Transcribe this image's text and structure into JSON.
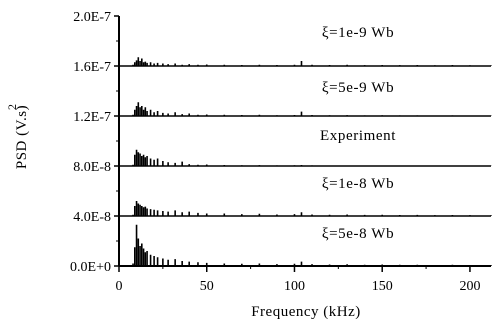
{
  "chart_data": {
    "type": "line",
    "title": "",
    "xlabel": "Frequency (kHz)",
    "ylabel": "PSD (V.s)",
    "ylabel_superscript": "2",
    "xlim": [
      0,
      212
    ],
    "ylim": [
      0,
      2e-07
    ],
    "xticks": [
      0,
      50,
      100,
      150,
      200
    ],
    "xtick_labels": [
      "0",
      "50",
      "100",
      "150",
      "200"
    ],
    "yticks": [
      0,
      4e-08,
      8e-08,
      1.2e-07,
      1.6e-07,
      2e-07
    ],
    "ytick_labels": [
      "0.0E+0",
      "4.0E-8",
      "8.0E-8",
      "1.2E-7",
      "1.6E-7",
      "2.0E-7"
    ],
    "grid": false,
    "legend": "none",
    "trace_color": "#000000",
    "series": [
      {
        "name": "ξ=1e-9 Wb",
        "baseline": 1.6e-07,
        "x": [
          8,
          9,
          10,
          11,
          12,
          13,
          14,
          15,
          16,
          18,
          20,
          22,
          25,
          28,
          32,
          36,
          40,
          45,
          50,
          60,
          70,
          80,
          90,
          100,
          104,
          110,
          120,
          130,
          140,
          150,
          160,
          170,
          180,
          190,
          200,
          212
        ],
        "y": [
          1.61e-07,
          1.63e-07,
          1.645e-07,
          1.67e-07,
          1.64e-07,
          1.66e-07,
          1.63e-07,
          1.635e-07,
          1.625e-07,
          1.63e-07,
          1.62e-07,
          1.625e-07,
          1.62e-07,
          1.615e-07,
          1.62e-07,
          1.61e-07,
          1.615e-07,
          1.61e-07,
          1.612e-07,
          1.61e-07,
          1.608e-07,
          1.61e-07,
          1.608e-07,
          1.61e-07,
          1.64e-07,
          1.61e-07,
          1.608e-07,
          1.61e-07,
          1.607e-07,
          1.608e-07,
          1.607e-07,
          1.608e-07,
          1.606e-07,
          1.608e-07,
          1.606e-07,
          1.605e-07
        ]
      },
      {
        "name": "ξ=5e-9 Wb",
        "baseline": 1.2e-07,
        "x": [
          8,
          9,
          10,
          11,
          12,
          13,
          14,
          15,
          16,
          18,
          20,
          22,
          25,
          28,
          32,
          36,
          40,
          45,
          50,
          60,
          70,
          80,
          90,
          100,
          104,
          110,
          120,
          130,
          140,
          150,
          160,
          170,
          180,
          190,
          200,
          212
        ],
        "y": [
          1.21e-07,
          1.25e-07,
          1.28e-07,
          1.31e-07,
          1.27e-07,
          1.28e-07,
          1.25e-07,
          1.27e-07,
          1.24e-07,
          1.25e-07,
          1.23e-07,
          1.24e-07,
          1.225e-07,
          1.22e-07,
          1.23e-07,
          1.215e-07,
          1.22e-07,
          1.21e-07,
          1.212e-07,
          1.21e-07,
          1.208e-07,
          1.21e-07,
          1.206e-07,
          1.208e-07,
          1.235e-07,
          1.208e-07,
          1.206e-07,
          1.207e-07,
          1.205e-07,
          1.206e-07,
          1.205e-07,
          1.205e-07,
          1.204e-07,
          1.205e-07,
          1.204e-07,
          1.203e-07
        ]
      },
      {
        "name": "Experiment",
        "baseline": 8e-08,
        "x": [
          8,
          9,
          10,
          11,
          12,
          13,
          14,
          15,
          16,
          18,
          20,
          22,
          25,
          28,
          32,
          36,
          40,
          45,
          50,
          60,
          70,
          80,
          90,
          100,
          104,
          110,
          120,
          130,
          140,
          150,
          160,
          170,
          180,
          190,
          200,
          212
        ],
        "y": [
          8.1e-08,
          8.9e-08,
          9.3e-08,
          9.1e-08,
          9e-08,
          8.8e-08,
          8.9e-08,
          8.7e-08,
          8.8e-08,
          8.6e-08,
          8.5e-08,
          8.6e-08,
          8.4e-08,
          8.3e-08,
          8.25e-08,
          8.35e-08,
          8.15e-08,
          8.1e-08,
          8.12e-08,
          8.08e-08,
          8.06e-08,
          8.07e-08,
          8.05e-08,
          8.06e-08,
          8.08e-08,
          8.05e-08,
          8.04e-08,
          8.04e-08,
          8.03e-08,
          8.04e-08,
          8.03e-08,
          8.03e-08,
          8.02e-08,
          8.03e-08,
          8.02e-08,
          8.02e-08
        ]
      },
      {
        "name": "ξ=1e-8 Wb",
        "baseline": 4e-08,
        "x": [
          8,
          9,
          10,
          11,
          12,
          13,
          14,
          15,
          16,
          18,
          20,
          22,
          25,
          28,
          32,
          36,
          40,
          45,
          50,
          60,
          70,
          80,
          90,
          100,
          104,
          110,
          120,
          130,
          140,
          150,
          160,
          170,
          180,
          190,
          200,
          212
        ],
        "y": [
          4.1e-08,
          4.8e-08,
          5.2e-08,
          5e-08,
          4.9e-08,
          4.8e-08,
          4.7e-08,
          4.75e-08,
          4.6e-08,
          4.55e-08,
          4.5e-08,
          4.45e-08,
          4.4e-08,
          4.35e-08,
          4.45e-08,
          4.3e-08,
          4.35e-08,
          4.25e-08,
          4.2e-08,
          4.2e-08,
          4.15e-08,
          4.18e-08,
          4.12e-08,
          4.15e-08,
          4.3e-08,
          4.12e-08,
          4.1e-08,
          4.12e-08,
          4.09e-08,
          4.1e-08,
          4.08e-08,
          4.09e-08,
          4.07e-08,
          4.08e-08,
          4.07e-08,
          4.06e-08
        ]
      },
      {
        "name": "ξ=5e-8 Wb",
        "baseline": 0,
        "x": [
          8,
          9,
          10,
          11,
          12,
          13,
          14,
          15,
          16,
          18,
          20,
          22,
          25,
          28,
          32,
          36,
          40,
          45,
          50,
          60,
          70,
          80,
          90,
          100,
          104,
          110,
          120,
          130,
          140,
          150,
          160,
          170,
          180,
          190,
          200,
          212
        ],
        "y": [
          2e-09,
          1.5e-08,
          3.3e-08,
          2.2e-08,
          1.6e-08,
          1.8e-08,
          1.4e-08,
          1.1e-08,
          1.2e-08,
          9e-09,
          8e-09,
          7e-09,
          6e-09,
          5e-09,
          5.5e-09,
          4e-09,
          3.5e-09,
          3e-09,
          2.5e-09,
          2e-09,
          1.8e-09,
          2e-09,
          1.5e-09,
          1.8e-09,
          3.5e-09,
          1.5e-09,
          1.2e-09,
          1.4e-09,
          1e-09,
          1.2e-09,
          1e-09,
          1e-09,
          8e-10,
          1e-09,
          8e-10,
          7e-10
        ]
      }
    ]
  }
}
